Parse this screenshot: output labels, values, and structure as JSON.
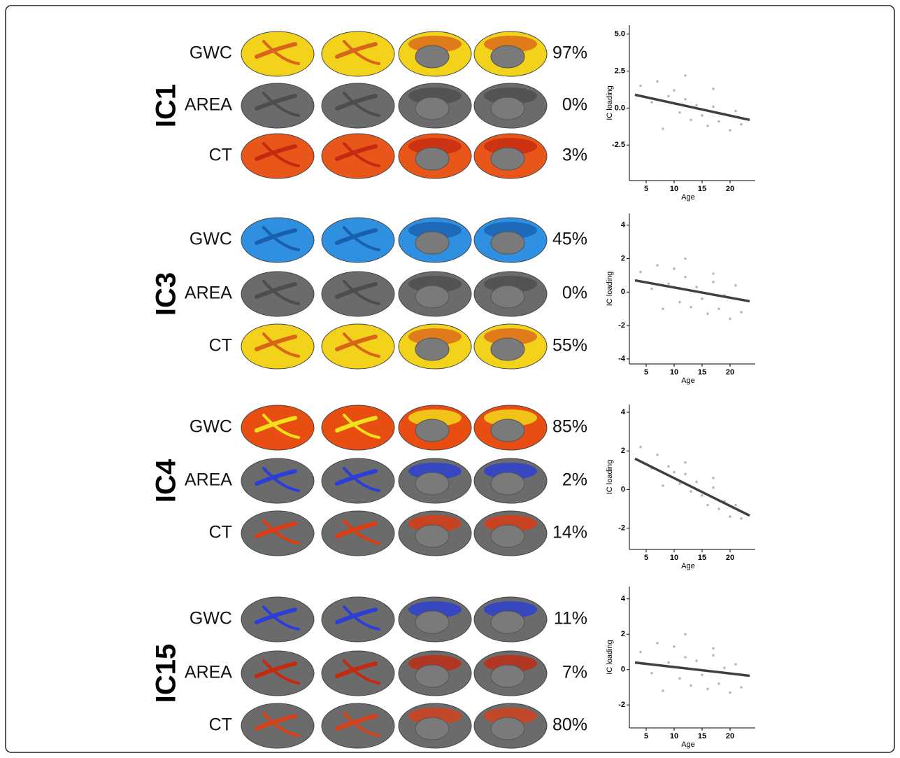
{
  "panels": [
    {
      "label": "IC1",
      "rows": [
        {
          "measure": "GWC",
          "share": "97%"
        },
        {
          "measure": "AREA",
          "share": "0%"
        },
        {
          "measure": "CT",
          "share": "3%"
        }
      ]
    },
    {
      "label": "IC3",
      "rows": [
        {
          "measure": "GWC",
          "share": "45%"
        },
        {
          "measure": "AREA",
          "share": "0%"
        },
        {
          "measure": "CT",
          "share": "55%"
        }
      ]
    },
    {
      "label": "IC4",
      "rows": [
        {
          "measure": "GWC",
          "share": "85%"
        },
        {
          "measure": "AREA",
          "share": "2%"
        },
        {
          "measure": "CT",
          "share": "14%"
        }
      ]
    },
    {
      "label": "IC15",
      "rows": [
        {
          "measure": "GWC",
          "share": "11%"
        },
        {
          "measure": "AREA",
          "share": "7%"
        },
        {
          "measure": "CT",
          "share": "80%"
        }
      ]
    }
  ],
  "chart_data": [
    {
      "type": "scatter",
      "xlabel": "Age",
      "ylabel": "IC loading",
      "xlim": [
        2,
        24.5
      ],
      "ylim": [
        -4.9,
        5.6
      ],
      "xticks": [
        5,
        10,
        15,
        20
      ],
      "yticks": [
        {
          "value": -2.5,
          "label": "-2.5"
        },
        {
          "value": 0,
          "label": "0.0"
        },
        {
          "value": 2.5,
          "label": "2.5"
        },
        {
          "value": 5,
          "label": "5.0"
        }
      ],
      "point_color": "#9a9a9a",
      "line_color": "#404040",
      "points": {
        "x": [
          4,
          6,
          7,
          9,
          10,
          11,
          12,
          13,
          14,
          15,
          16,
          17,
          18,
          19,
          20,
          21,
          22,
          8,
          12,
          17
        ],
        "y": [
          1.5,
          0.4,
          1.8,
          0.8,
          1.2,
          -0.3,
          0.6,
          -0.8,
          0.2,
          -0.5,
          -1.2,
          0.1,
          -0.9,
          -0.4,
          -1.5,
          -0.2,
          -1.1,
          -1.4,
          2.2,
          1.3
        ]
      },
      "fit": {
        "x": [
          3,
          23.5
        ],
        "y": [
          0.9,
          -0.8
        ]
      }
    },
    {
      "type": "scatter",
      "xlabel": "Age",
      "ylabel": "IC loading",
      "xlim": [
        2,
        24.5
      ],
      "ylim": [
        -4.3,
        4.7
      ],
      "xticks": [
        5,
        10,
        15,
        20
      ],
      "yticks": [
        -4,
        -2,
        0,
        2,
        4
      ],
      "point_color": "#9a9a9a",
      "line_color": "#404040",
      "points": {
        "x": [
          4,
          6,
          7,
          9,
          10,
          11,
          12,
          13,
          14,
          15,
          16,
          17,
          18,
          19,
          20,
          21,
          22,
          8,
          12,
          17
        ],
        "y": [
          1.2,
          0.2,
          1.6,
          0.5,
          1.4,
          -0.6,
          0.9,
          -0.9,
          0.3,
          -0.4,
          -1.3,
          0.6,
          -1.0,
          -0.2,
          -1.6,
          0.4,
          -1.2,
          -1.0,
          2.0,
          1.1
        ]
      },
      "fit": {
        "x": [
          3,
          23.5
        ],
        "y": [
          0.7,
          -0.55
        ]
      }
    },
    {
      "type": "scatter",
      "xlabel": "Age",
      "ylabel": "IC loading",
      "xlim": [
        2,
        24.5
      ],
      "ylim": [
        -3.1,
        4.4
      ],
      "xticks": [
        5,
        10,
        15,
        20
      ],
      "yticks": [
        -2,
        0,
        2,
        4
      ],
      "point_color": "#9a9a9a",
      "line_color": "#404040",
      "points": {
        "x": [
          4,
          6,
          7,
          9,
          10,
          11,
          12,
          13,
          14,
          15,
          16,
          17,
          18,
          19,
          20,
          21,
          22,
          8,
          12,
          17
        ],
        "y": [
          2.2,
          1.1,
          1.8,
          1.2,
          0.9,
          0.3,
          0.8,
          -0.1,
          0.4,
          -0.3,
          -0.8,
          0.1,
          -1.0,
          -0.6,
          -1.4,
          -0.8,
          -1.5,
          0.2,
          1.4,
          0.6
        ]
      },
      "fit": {
        "x": [
          3,
          23.5
        ],
        "y": [
          1.6,
          -1.35
        ]
      }
    },
    {
      "type": "scatter",
      "xlabel": "Age",
      "ylabel": "IC loading",
      "xlim": [
        2,
        24.5
      ],
      "ylim": [
        -3.3,
        4.7
      ],
      "xticks": [
        5,
        10,
        15,
        20
      ],
      "yticks": [
        -2,
        0,
        2,
        4
      ],
      "point_color": "#9a9a9a",
      "line_color": "#404040",
      "points": {
        "x": [
          4,
          6,
          7,
          9,
          10,
          11,
          12,
          13,
          14,
          15,
          16,
          17,
          18,
          19,
          20,
          21,
          22,
          8,
          12,
          17
        ],
        "y": [
          1.0,
          -0.2,
          1.5,
          0.4,
          1.3,
          -0.5,
          0.7,
          -0.9,
          0.5,
          -0.3,
          -1.1,
          0.8,
          -0.8,
          0.1,
          -1.3,
          0.3,
          -1.0,
          -1.2,
          2.0,
          1.2
        ]
      },
      "fit": {
        "x": [
          3,
          23.5
        ],
        "y": [
          0.4,
          -0.35
        ]
      }
    }
  ]
}
